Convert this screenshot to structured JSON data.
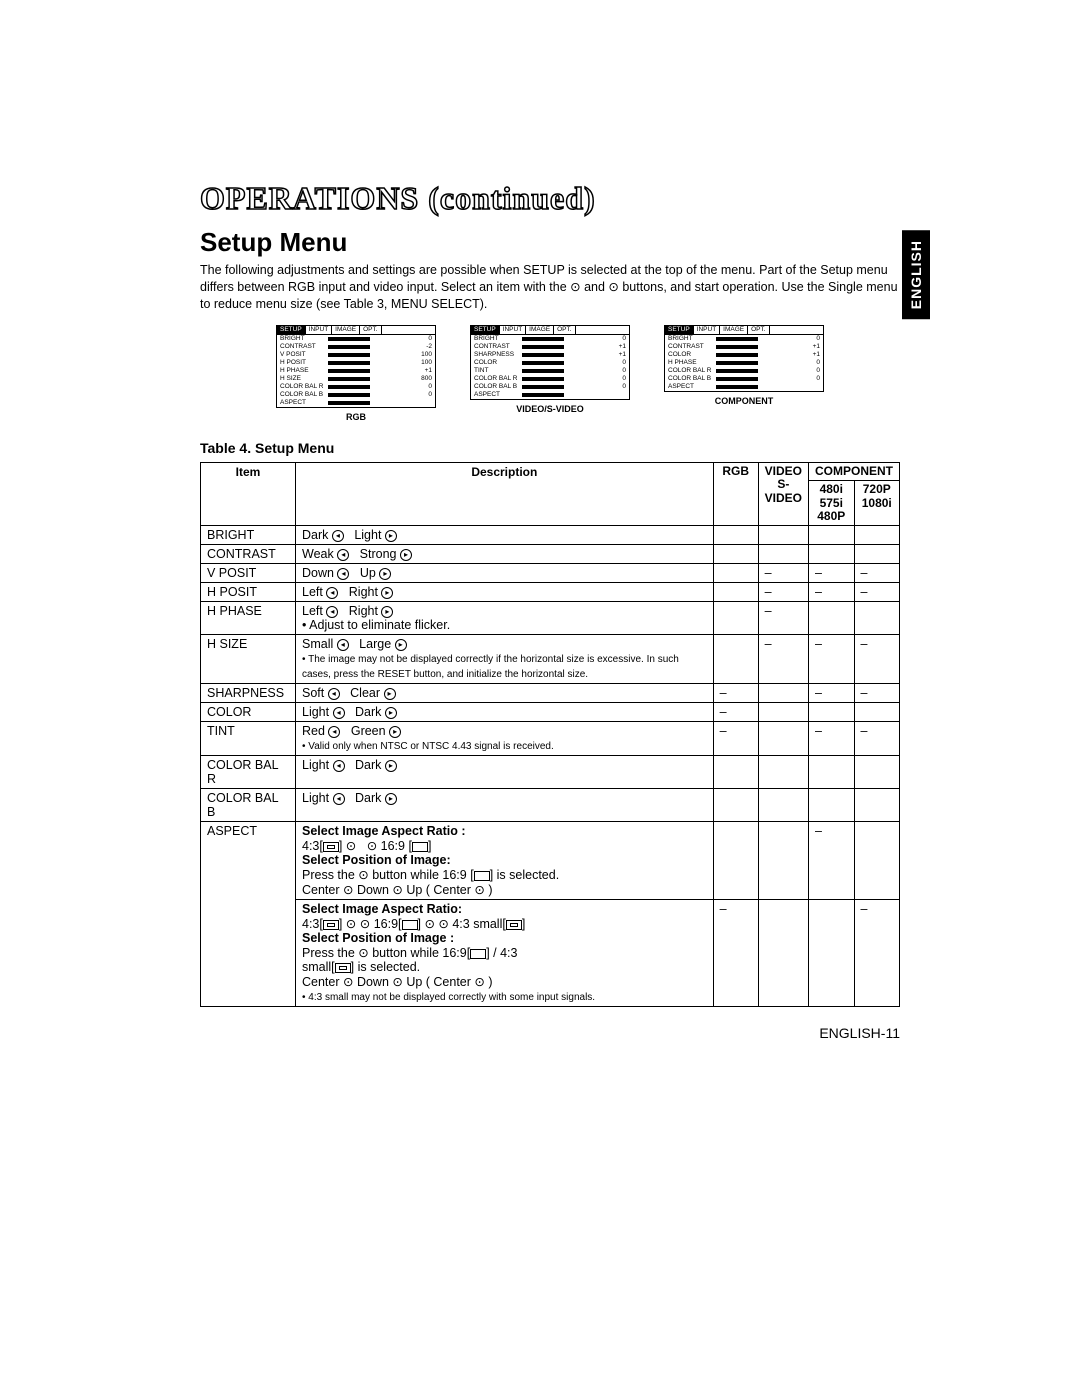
{
  "headings": {
    "operations": "OPERATIONS (continued)",
    "setup": "Setup Menu",
    "table_caption": "Table 4. Setup Menu",
    "page_num": "ENGLISH-11",
    "english_tab": "ENGLISH"
  },
  "intro": "The following adjustments and settings are possible when SETUP is selected at the top of the menu. Part of the Setup menu differs between RGB input and video input. Select an item with the ⊙ and ⊙ buttons, and start operation. Use the Single menu to reduce menu size (see Table 3, MENU SELECT).",
  "menu_tabs": [
    "SETUP",
    "INPUT",
    "IMAGE",
    "OPT."
  ],
  "menus": [
    {
      "caption": "RGB",
      "rows": [
        {
          "label": "BRIGHT",
          "val": "0"
        },
        {
          "label": "CONTRAST",
          "val": "-2"
        },
        {
          "label": "V POSIT",
          "val": "100"
        },
        {
          "label": "H POSIT",
          "val": "100"
        },
        {
          "label": "H PHASE",
          "val": "+1"
        },
        {
          "label": "H SIZE",
          "val": "800"
        },
        {
          "label": "COLOR BAL R",
          "val": "0"
        },
        {
          "label": "COLOR BAL B",
          "val": "0"
        },
        {
          "label": "ASPECT",
          "val": ""
        }
      ]
    },
    {
      "caption": "VIDEO/S-VIDEO",
      "rows": [
        {
          "label": "BRIGHT",
          "val": "0"
        },
        {
          "label": "CONTRAST",
          "val": "+1"
        },
        {
          "label": "SHARPNESS",
          "val": "+1"
        },
        {
          "label": "COLOR",
          "val": "0"
        },
        {
          "label": "TINT",
          "val": "0"
        },
        {
          "label": "COLOR BAL R",
          "val": "0"
        },
        {
          "label": "COLOR BAL B",
          "val": "0"
        },
        {
          "label": "ASPECT",
          "val": ""
        }
      ]
    },
    {
      "caption": "COMPONENT",
      "rows": [
        {
          "label": "BRIGHT",
          "val": "0"
        },
        {
          "label": "CONTRAST",
          "val": "+1"
        },
        {
          "label": "COLOR",
          "val": "+1"
        },
        {
          "label": "H PHASE",
          "val": "0"
        },
        {
          "label": "COLOR BAL R",
          "val": "0"
        },
        {
          "label": "COLOR BAL B",
          "val": "0"
        },
        {
          "label": "ASPECT",
          "val": ""
        }
      ]
    }
  ],
  "table_head": {
    "item": "Item",
    "desc": "Description",
    "rgb": "RGB",
    "video": "VIDEO S-VIDEO",
    "component": "COMPONENT",
    "c1": "480i 575i 480P",
    "c2": "720P 1080i"
  },
  "rows": {
    "bright": {
      "item": "BRIGHT",
      "a": "Dark",
      "b": "Light"
    },
    "contrast": {
      "item": "CONTRAST",
      "a": "Weak",
      "b": "Strong"
    },
    "vposit": {
      "item": "V POSIT",
      "a": "Down",
      "b": "Up"
    },
    "hposit": {
      "item": "H POSIT",
      "a": "Left",
      "b": "Right"
    },
    "hphase": {
      "item": "H PHASE",
      "a": "Left",
      "b": "Right",
      "note": "• Adjust to eliminate flicker."
    },
    "hsize": {
      "item": "H SIZE",
      "a": "Small",
      "b": "Large",
      "note": "• The image may not be displayed correctly if the horizontal size is excessive. In such cases, press the RESET button, and initialize the horizontal size."
    },
    "sharp": {
      "item": "SHARPNESS",
      "a": "Soft",
      "b": "Clear"
    },
    "color": {
      "item": "COLOR",
      "a": "Light",
      "b": "Dark"
    },
    "tint": {
      "item": "TINT",
      "a": "Red",
      "b": "Green",
      "note": "• Valid only when NTSC or NTSC 4.43 signal is received."
    },
    "balr": {
      "item": "COLOR BAL R",
      "a": "Light",
      "b": "Dark"
    },
    "balb": {
      "item": "COLOR BAL B",
      "a": "Light",
      "b": "Dark"
    },
    "aspect_item": "ASPECT",
    "aspect1": {
      "h1": "Select Image Aspect Ratio :",
      "r1a": "4:3[",
      "r1b": "] ⊙",
      "r1c": "⊙ 16:9 [",
      "r1d": "]",
      "h2": "Select Position of Image:",
      "p1": "Press the ⊙ button while 16:9 [",
      "p1b": "] is selected.",
      "p2": "Center    ⊙ Down    ⊙ Up (    Center ⊙ )"
    },
    "aspect2": {
      "h1": "Select Image Aspect Ratio:",
      "r1": "4:3[",
      "r1b": "] ⊙    ⊙ 16:9[",
      "r1c": "] ⊙    ⊙ 4:3 small[",
      "r1d": "]",
      "h2": "Select Position of Image :",
      "p1": "Press the ⊙ button while 16:9[",
      "p1b": "] / 4:3",
      "p2": "small[",
      "p2b": "] is selected.",
      "p3": "Center    ⊙ Down    ⊙ Up (    Center ⊙ )",
      "note": "• 4:3 small may not be displayed correctly with some input signals."
    }
  }
}
